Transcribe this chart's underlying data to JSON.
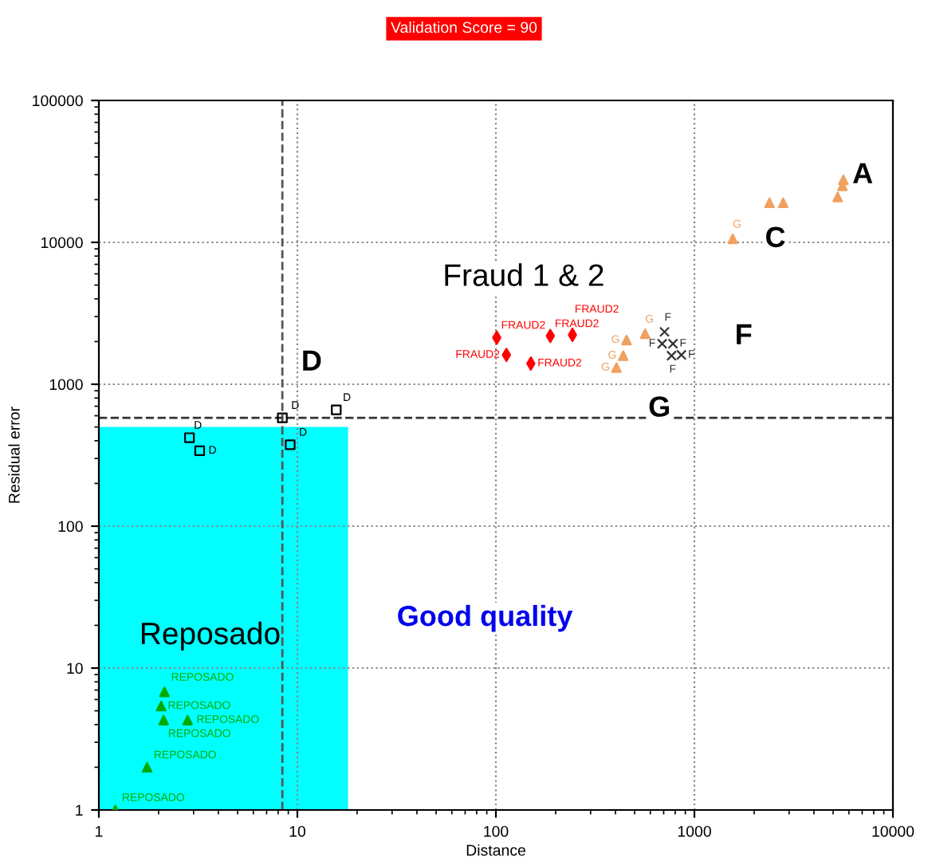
{
  "chart_data": {
    "type": "scatter",
    "title": "Validation Score = 90",
    "xlabel": "Distance",
    "ylabel": "Residual error",
    "log": "xy",
    "xlim": [
      1,
      10000
    ],
    "ylim": [
      1,
      100000
    ],
    "xticks": [
      1,
      10,
      100,
      1000,
      10000
    ],
    "yticks": [
      1,
      10,
      100,
      1000,
      10000,
      100000
    ],
    "grid": true,
    "series": [
      {
        "type": "area",
        "color": "#00ffff",
        "x": [
          1,
          18
        ],
        "values": [
          500,
          500
        ]
      },
      {
        "color": "#00aa00",
        "marker": "triangle",
        "x": [
          1.21,
          1.75,
          2.12,
          2.06,
          2.14,
          2.8
        ],
        "values": [
          1.0,
          2.0,
          4.3,
          5.4,
          6.8,
          4.3
        ],
        "value_labels": [
          "REPOSADO",
          "REPOSADO",
          "REPOSADO",
          "REPOSADO",
          "REPOSADO",
          "REPOSADO"
        ]
      },
      {
        "color": "#000000",
        "marker": "square",
        "x": [
          2.86,
          3.22,
          8.4,
          9.2,
          15.7
        ],
        "values": [
          420,
          340,
          580,
          375,
          660
        ],
        "value_labels": [
          "D",
          "D",
          "D",
          "D",
          "D"
        ]
      },
      {
        "color": "#ff0000",
        "marker": "diamond",
        "x": [
          101,
          188,
          243,
          113,
          150
        ],
        "values": [
          2130,
          2190,
          2230,
          1610,
          1400
        ],
        "value_labels": [
          "FRAUD2",
          "FRAUD2",
          "FRAUD2",
          "FRAUD2",
          "FRAUD2"
        ]
      },
      {
        "color": "#f0a060",
        "marker": "triangle",
        "x": [
          405,
          438,
          455,
          565,
          1560,
          2390,
          2800,
          5270,
          5570,
          5630
        ],
        "values": [
          1310,
          1590,
          2050,
          2270,
          10600,
          19000,
          19000,
          20900,
          25000,
          27600
        ],
        "value_labels": [
          "G",
          "G",
          "G",
          "G",
          "G",
          null,
          null,
          null,
          null,
          null
        ]
      },
      {
        "color": "#333333",
        "marker": "cross",
        "x": [
          688,
          707,
          780,
          767,
          860
        ],
        "values": [
          1930,
          2340,
          1930,
          1590,
          1610
        ],
        "value_labels": [
          "F",
          "F",
          "F",
          "F",
          "F"
        ]
      }
    ],
    "ref_lines": [
      {
        "axis": "x",
        "value": 8.4,
        "line_style": "dashed"
      },
      {
        "axis": "y",
        "value": 580,
        "line_style": "dashed"
      }
    ],
    "annotations": [
      "A",
      "C",
      "Fraud 1 & 2",
      "F",
      "G",
      "D",
      "Good quality",
      "Reposado"
    ]
  }
}
